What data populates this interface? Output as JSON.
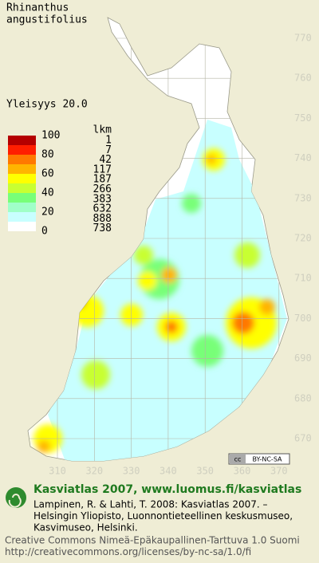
{
  "title": [
    "Rhinanthus",
    "angustifolius"
  ],
  "frequency": "Yleisyys  20.0",
  "legend": {
    "count_header": "lkm",
    "scale_labels": [
      100,
      80,
      60,
      40,
      20,
      0
    ],
    "counts": [
      1,
      7,
      42,
      117,
      187,
      266,
      383,
      632,
      888,
      738
    ],
    "colors": [
      "#b40000",
      "#ff1e00",
      "#ff7800",
      "#ffb400",
      "#ffff00",
      "#c8ff32",
      "#78ff78",
      "#a0ffc8",
      "#c8ffff",
      "#ffffff"
    ]
  },
  "grid": {
    "y_labels": [
      770,
      760,
      750,
      740,
      730,
      720,
      710,
      700,
      690,
      680,
      670
    ],
    "x_labels": [
      310,
      320,
      330,
      340,
      350,
      360,
      370
    ]
  },
  "badge": {
    "cc": "cc",
    "text": "BY-NC-SA"
  },
  "footer": {
    "heading": "Kasviatlas 2007, www.luomus.fi/kasviatlas",
    "lines": [
      "Lampinen, R. & Lahti, T. 2008: Kasviatlas 2007. –",
      "Helsingin Yliopisto, Luonnontieteellinen keskusmuseo,",
      "Kasvimuseo, Helsinki."
    ],
    "license": [
      "Creative Commons Nimeä-Epäkaupallinen-Tarttuva 1.0 Suomi",
      "http://creativecommons.org/licenses/by-nc-sa/1.0/fi"
    ]
  }
}
